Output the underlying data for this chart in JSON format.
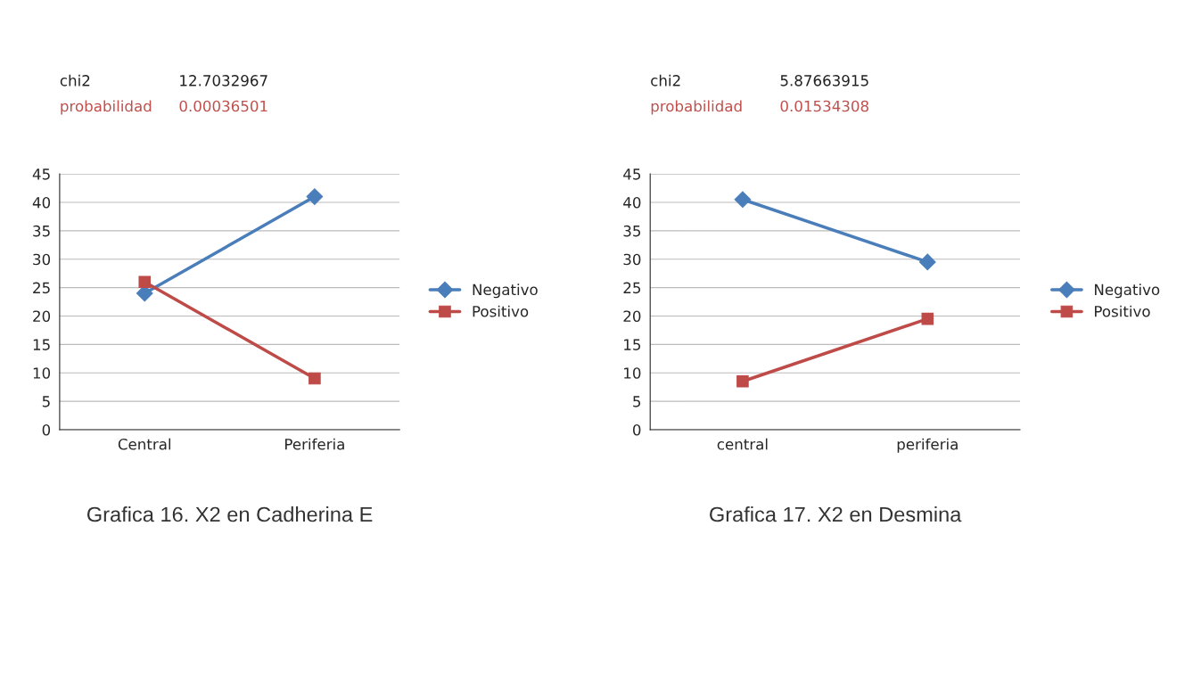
{
  "chart_data": [
    {
      "type": "line",
      "title": "Grafica 16. X2 en Cadherina E",
      "annotations": [
        "chi2",
        "12.7032967",
        "probabilidad",
        "0.00036501"
      ],
      "categories": [
        "Central",
        "Periferia"
      ],
      "series": [
        {
          "name": "Negativo",
          "color": "#4a7ebb",
          "marker": "diamond",
          "values": [
            24,
            41
          ]
        },
        {
          "name": "Positivo",
          "color": "#be4b48",
          "marker": "square",
          "values": [
            26,
            9
          ]
        }
      ],
      "ylim": [
        0,
        45
      ],
      "yticks": [
        0,
        5,
        10,
        15,
        20,
        25,
        30,
        35,
        40,
        45
      ],
      "grid": "y",
      "legend": "right"
    },
    {
      "type": "line",
      "title": "Grafica 17. X2 en Desmina",
      "annotations": [
        "chi2",
        "5.87663915",
        "probabilidad",
        "0.01534308"
      ],
      "categories": [
        "central",
        "periferia"
      ],
      "series": [
        {
          "name": "Negativo",
          "color": "#4a7ebb",
          "marker": "diamond",
          "values": [
            40.5,
            29.5
          ]
        },
        {
          "name": "Positivo",
          "color": "#be4b48",
          "marker": "square",
          "values": [
            8.5,
            19.5
          ]
        }
      ],
      "ylim": [
        0,
        45
      ],
      "yticks": [
        0,
        5,
        10,
        15,
        20,
        25,
        30,
        35,
        40,
        45
      ],
      "grid": "y",
      "legend": "right"
    }
  ]
}
